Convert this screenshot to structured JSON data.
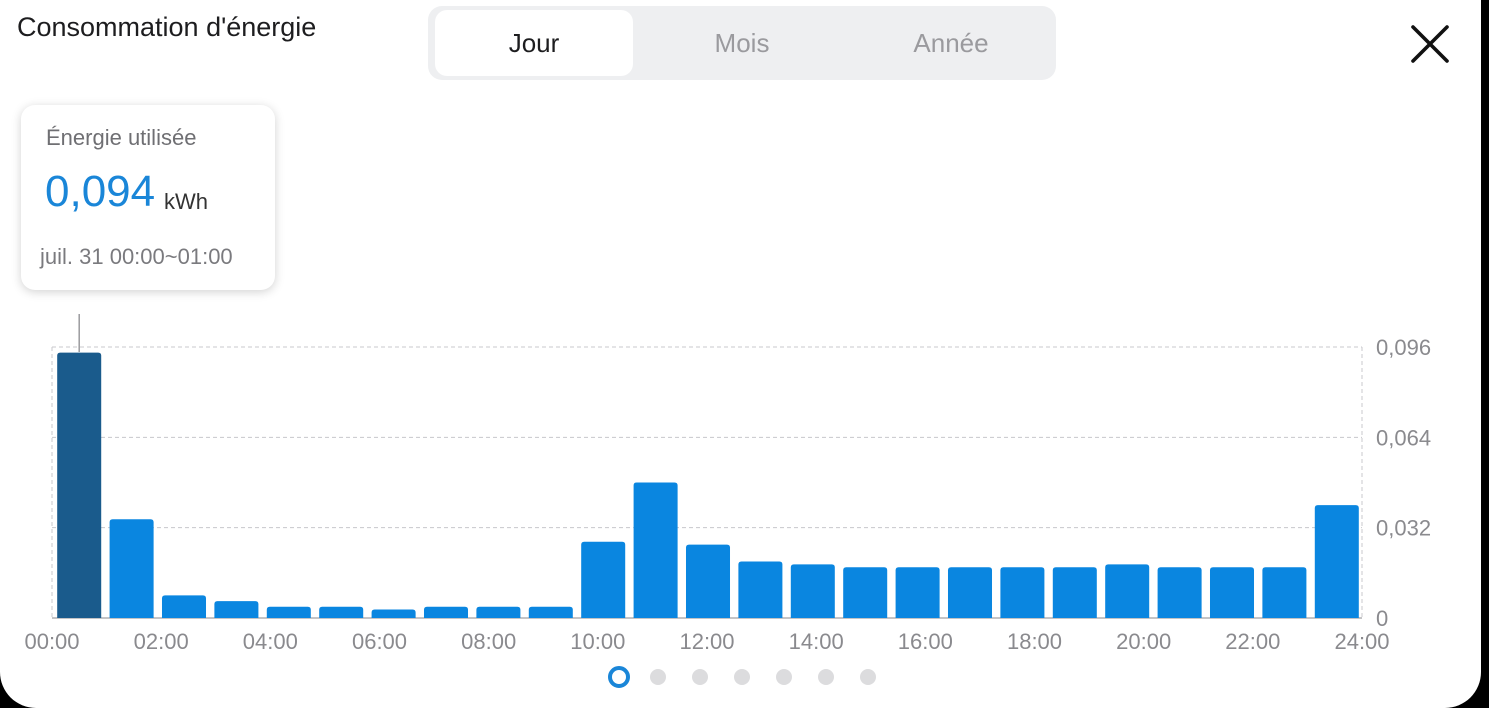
{
  "header": {
    "title": "Consommation d'énergie",
    "tabs": [
      {
        "label": "Jour",
        "active": true
      },
      {
        "label": "Mois",
        "active": false
      },
      {
        "label": "Année",
        "active": false
      }
    ],
    "close_icon": "close-icon"
  },
  "tooltip": {
    "label": "Énergie utilisée",
    "value": "0,094",
    "unit": "kWh",
    "time": "juil. 31 00:00~01:00"
  },
  "pager": {
    "count": 7,
    "active_index": 0
  },
  "colors": {
    "bar": "#0a86e0",
    "bar_selected": "#1a5b8c",
    "accent": "#1a86d8"
  },
  "chart_data": {
    "type": "bar",
    "categories": [
      "00:00",
      "01:00",
      "02:00",
      "03:00",
      "04:00",
      "05:00",
      "06:00",
      "07:00",
      "08:00",
      "09:00",
      "10:00",
      "11:00",
      "12:00",
      "13:00",
      "14:00",
      "15:00",
      "16:00",
      "17:00",
      "18:00",
      "19:00",
      "20:00",
      "21:00",
      "22:00",
      "23:00"
    ],
    "values": [
      0.094,
      0.035,
      0.008,
      0.006,
      0.004,
      0.004,
      0.003,
      0.004,
      0.004,
      0.004,
      0.027,
      0.048,
      0.026,
      0.02,
      0.019,
      0.018,
      0.018,
      0.018,
      0.018,
      0.018,
      0.019,
      0.018,
      0.018,
      0.018
    ],
    "last_value": 0.04,
    "selected_index": 0,
    "x_tick_labels": [
      "00:00",
      "02:00",
      "04:00",
      "06:00",
      "08:00",
      "10:00",
      "12:00",
      "14:00",
      "16:00",
      "18:00",
      "20:00",
      "22:00",
      "24:00"
    ],
    "y_tick_labels": [
      "0,096",
      "0,064",
      "0,032",
      "0"
    ],
    "y_ticks": [
      0.096,
      0.064,
      0.032,
      0
    ],
    "ylim": [
      0,
      0.096
    ],
    "y_axis_position": "right",
    "grid": true
  }
}
